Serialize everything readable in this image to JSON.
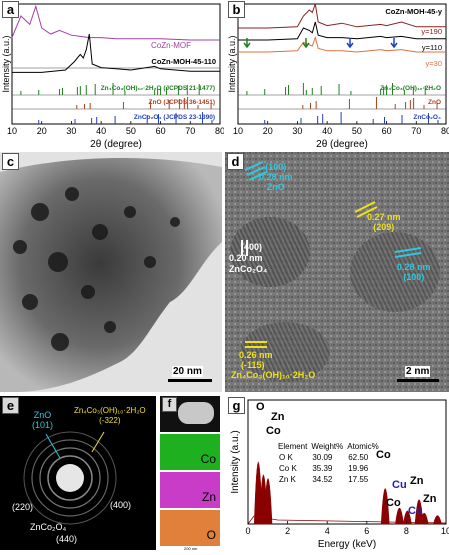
{
  "panel_a": {
    "label": "a",
    "legend_mof": "CoZn-MOF",
    "legend_moh": "CoZn-MOH-45-110",
    "ref1": "Zn₄Co₃(OH)₁₀·2H₂O (JCPDS 21-1477)",
    "ref2": "ZnO (JCPDS 36-1451)",
    "ref3": "ZnCo₂O₄ (JCPDS 23-1390)",
    "ylabel": "Intensity (a.u.)",
    "xlabel": "2θ (degree)",
    "ticks": [
      "10",
      "20",
      "30",
      "40",
      "50",
      "60",
      "70",
      "80"
    ]
  },
  "panel_b": {
    "label": "b",
    "title": "CoZn-MOH-45-y",
    "y190": "y=190",
    "y110": "y=110",
    "y30": "y=30",
    "ref1": "Zn₄Co₃(OH)₁₀·2H₂O",
    "ref2": "ZnO",
    "ref3": "ZnCo₂O₄",
    "ylabel": "Intensity (a.u.)",
    "xlabel": "2θ (degree)",
    "ticks": [
      "10",
      "20",
      "30",
      "40",
      "50",
      "60",
      "70",
      "80"
    ]
  },
  "panel_c": {
    "label": "c",
    "scale": "20 nm"
  },
  "panel_d": {
    "label": "d",
    "a1": "(100)",
    "a2": "0.28 nm",
    "a3": "ZnO",
    "b1": "0.27 nm",
    "b2": "(209)",
    "c1": "(400)",
    "c2": "0.20 nm",
    "c3": "ZnCo₂O₄",
    "d1": "0.28 nm",
    "d2": "(100)",
    "e1": "0.26 nm",
    "e2": "(-115)",
    "e3": "Zn₄Co₃(OH)₁₀·2H₂O",
    "scale": "2 nm"
  },
  "panel_e": {
    "label": "e",
    "zno": "ZnO",
    "zno_hkl": "(101)",
    "zco": "Zn₄Co₃(OH)₁₀·2H₂O",
    "zco_hkl": "(-322)",
    "r220": "(220)",
    "r400": "(400)",
    "spinel": "ZnCo₂O₄",
    "r440": "(440)"
  },
  "panel_f": {
    "label": "f",
    "maps": [
      "Co",
      "Zn",
      "O"
    ],
    "scale": "200 nm",
    "colors": {
      "Co": "#1fb01f",
      "Zn": "#c83cc8",
      "O": "#e0803a"
    }
  },
  "panel_g": {
    "label": "g",
    "ylabel": "Intensity (a.u.)",
    "xlabel": "Energy (keV)",
    "ticks": [
      "0",
      "2",
      "4",
      "6",
      "8",
      "10"
    ],
    "peaks": {
      "o": "O",
      "zn_low": "Zn",
      "co_low": "Co",
      "co1": "Co",
      "co2": "Co",
      "zn1": "Zn",
      "zn2": "Zn",
      "cu1": "Cu",
      "cu2": "Cu"
    },
    "table": {
      "headers": [
        "Element",
        "Weight%",
        "Atomic%"
      ],
      "rows": [
        [
          "O K",
          "30.09",
          "62.50"
        ],
        [
          "Co K",
          "35.39",
          "19.96"
        ],
        [
          "Zn K",
          "34.52",
          "17.55"
        ]
      ]
    }
  },
  "chart_data": [
    {
      "type": "line",
      "panel": "a",
      "xlabel": "2θ (degree)",
      "ylabel": "Intensity (a.u.)",
      "xlim": [
        10,
        80
      ],
      "series": [
        {
          "name": "CoZn-MOF",
          "x": [
            10,
            13,
            16,
            18,
            20,
            23,
            26,
            30,
            33,
            36,
            40,
            45,
            50,
            60,
            70,
            80
          ],
          "y": [
            0.72,
            0.9,
            0.83,
            0.98,
            0.8,
            0.75,
            0.78,
            0.74,
            0.73,
            0.72,
            0.72,
            0.71,
            0.71,
            0.71,
            0.7,
            0.7
          ]
        },
        {
          "name": "CoZn-MOH-45-110",
          "x": [
            10,
            20,
            28,
            31,
            33,
            34,
            35,
            36,
            37,
            40,
            45,
            50,
            58,
            60,
            65,
            70,
            80
          ],
          "y": [
            0.43,
            0.43,
            0.45,
            0.52,
            0.58,
            0.55,
            0.62,
            0.75,
            0.5,
            0.47,
            0.46,
            0.45,
            0.48,
            0.46,
            0.45,
            0.44,
            0.44
          ]
        }
      ],
      "reference_patterns": {
        "Zn4Co3(OH)10 2H2O (JCPDS 21-1477)": [
          13,
          19,
          26,
          27,
          32,
          33,
          35,
          38,
          44,
          48,
          58,
          59,
          60,
          62,
          66,
          69,
          73
        ],
        "ZnO (JCPDS 36-1451)": [
          31.8,
          34.4,
          36.3,
          47.5,
          56.6,
          62.9,
          66.4,
          68.0,
          69.1,
          72.6,
          77.0
        ],
        "ZnCo2O4 (JCPDS 23-1390)": [
          19,
          31.2,
          36.8,
          38.5,
          44.7,
          55.5,
          59.3,
          65.2,
          74.1,
          77.3
        ]
      }
    },
    {
      "type": "line",
      "panel": "b",
      "xlabel": "2θ (degree)",
      "ylabel": "Intensity (a.u.)",
      "xlim": [
        10,
        80
      ],
      "series": [
        {
          "name": "y=190",
          "x": [
            10,
            20,
            30,
            32,
            34,
            35,
            36,
            37,
            40,
            45,
            50,
            58,
            60,
            65,
            70,
            80
          ],
          "y": [
            0.8,
            0.8,
            0.81,
            0.9,
            0.95,
            0.93,
            1.0,
            0.85,
            0.82,
            0.84,
            0.81,
            0.83,
            0.82,
            0.85,
            0.81,
            0.81
          ]
        },
        {
          "name": "y=110",
          "x": [
            10,
            20,
            30,
            32,
            34,
            35,
            36,
            37,
            40,
            45,
            50,
            58,
            60,
            65,
            70,
            80
          ],
          "y": [
            0.7,
            0.7,
            0.71,
            0.8,
            0.78,
            0.76,
            0.85,
            0.74,
            0.72,
            0.72,
            0.71,
            0.73,
            0.72,
            0.73,
            0.71,
            0.71
          ]
        },
        {
          "name": "y=30",
          "x": [
            10,
            20,
            30,
            32,
            34,
            35,
            36,
            37,
            40,
            45,
            50,
            58,
            60,
            65,
            70,
            80
          ],
          "y": [
            0.6,
            0.6,
            0.61,
            0.68,
            0.66,
            0.65,
            0.72,
            0.63,
            0.61,
            0.61,
            0.6,
            0.62,
            0.61,
            0.62,
            0.6,
            0.6
          ]
        }
      ]
    },
    {
      "type": "bar",
      "panel": "g",
      "xlabel": "Energy (keV)",
      "ylabel": "Intensity (a.u.)",
      "xlim": [
        0,
        10
      ],
      "categories": [
        "O K",
        "Co L",
        "Zn L",
        "Co Kα",
        "Co Kβ",
        "Cu Kα",
        "Zn Kα",
        "Cu Kβ",
        "Zn Kβ"
      ],
      "x": [
        0.52,
        0.78,
        1.01,
        6.93,
        7.65,
        8.05,
        8.64,
        8.9,
        9.57
      ],
      "values": [
        1.0,
        0.78,
        0.72,
        0.55,
        0.22,
        0.17,
        0.36,
        0.13,
        0.09
      ]
    }
  ]
}
